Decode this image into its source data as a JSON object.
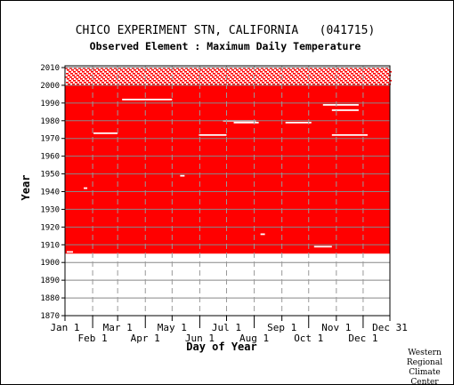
{
  "chart_data": {
    "type": "heatmap",
    "title": "CHICO EXPERIMENT STN, CALIFORNIA   (041715)",
    "subtitle": "Observed Element : Maximum Daily Temperature",
    "xlabel": "Day of Year",
    "ylabel": "Year",
    "ylim": [
      1870,
      2011
    ],
    "y_ticks": [
      1870,
      1880,
      1890,
      1900,
      1910,
      1920,
      1930,
      1940,
      1950,
      1960,
      1970,
      1980,
      1990,
      2000,
      2010
    ],
    "x_ticks_top": [
      "Jan 1",
      "Mar 1",
      "May 1",
      "Jul 1",
      "Sep 1",
      "Nov 1",
      "Dec 31"
    ],
    "x_ticks_bottom": [
      "Feb 1",
      "Apr 1",
      "Jun 1",
      "Aug 1",
      "Oct 1",
      "Dec 1"
    ],
    "grid": true,
    "data_color": "#ff0000",
    "legend": "",
    "coverage": {
      "start_year": 1905,
      "dense_until_year": 2000,
      "sparse_until_year": 2010,
      "note_visible": false
    },
    "missing_gaps": [
      {
        "year": 1973,
        "start_day": 33,
        "end_day": 60
      },
      {
        "year": 1992,
        "start_day": 65,
        "end_day": 121
      },
      {
        "year": 1972,
        "start_day": 151,
        "end_day": 182
      },
      {
        "year": 1979,
        "start_day": 190,
        "end_day": 218
      },
      {
        "year": 1979,
        "start_day": 248,
        "end_day": 277
      },
      {
        "year": 1972,
        "start_day": 300,
        "end_day": 340
      },
      {
        "year": 1989,
        "start_day": 290,
        "end_day": 330
      },
      {
        "year": 1986,
        "start_day": 300,
        "end_day": 330
      },
      {
        "year": 1980,
        "start_day": 178,
        "end_day": 215
      },
      {
        "year": 1942,
        "start_day": 22,
        "end_day": 26
      },
      {
        "year": 1949,
        "start_day": 130,
        "end_day": 135
      },
      {
        "year": 1916,
        "start_day": 220,
        "end_day": 225
      },
      {
        "year": 1909,
        "start_day": 280,
        "end_day": 300
      },
      {
        "year": 1906,
        "start_day": 3,
        "end_day": 10
      }
    ]
  },
  "credit": [
    "Western",
    "Regional",
    "Climate",
    "Center"
  ]
}
